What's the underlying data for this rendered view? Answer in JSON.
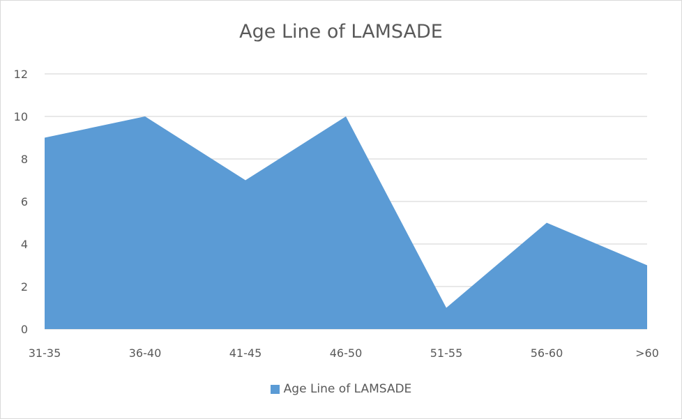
{
  "chart_data": {
    "type": "area",
    "title": "Age Line of LAMSADE",
    "xlabel": "",
    "ylabel": "",
    "categories": [
      "31-35",
      "36-40",
      "41-45",
      "46-50",
      "51-55",
      "56-60",
      ">60"
    ],
    "series": [
      {
        "name": "Age Line of LAMSADE",
        "values": [
          9,
          10,
          7,
          10,
          1,
          5,
          3
        ],
        "color": "#5b9bd5"
      }
    ],
    "ylim": [
      0,
      12
    ],
    "yticks": [
      0,
      2,
      4,
      6,
      8,
      10,
      12
    ],
    "grid": true,
    "legend_position": "bottom",
    "gridline_color": "#d9d9d9",
    "text_color": "#595959"
  }
}
